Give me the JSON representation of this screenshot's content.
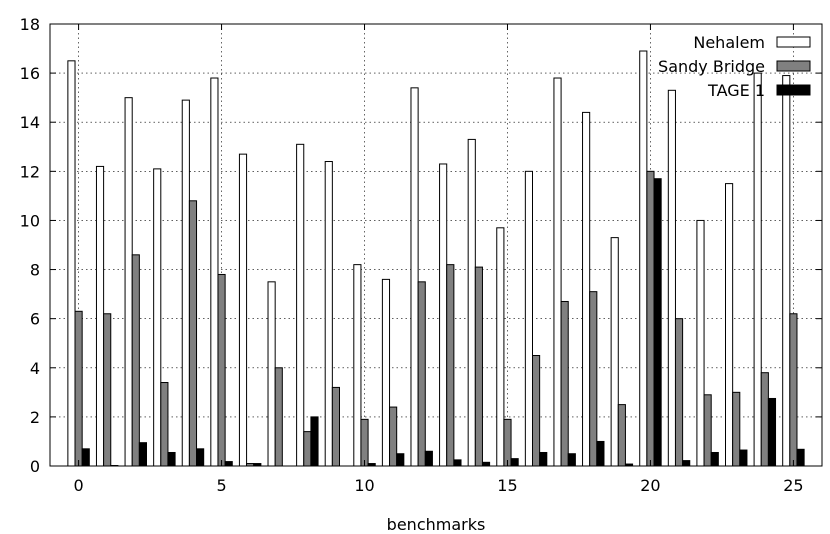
{
  "chart_data": {
    "type": "bar",
    "title": "",
    "xlabel": "benchmarks",
    "ylabel": "",
    "ylim": [
      0,
      18
    ],
    "xlim": [
      -1,
      26
    ],
    "xticks": [
      0,
      5,
      10,
      15,
      20,
      25
    ],
    "yticks": [
      0,
      2,
      4,
      6,
      8,
      10,
      12,
      14,
      16,
      18
    ],
    "grid": true,
    "legend_position": "top-right",
    "categories": [
      0,
      1,
      2,
      3,
      4,
      5,
      6,
      7,
      8,
      9,
      10,
      11,
      12,
      13,
      14,
      15,
      16,
      17,
      18,
      19,
      20,
      21,
      22,
      23,
      24,
      25
    ],
    "series": [
      {
        "name": "Nehalem",
        "fill": "#ffffff",
        "values": [
          16.5,
          12.2,
          15.0,
          12.1,
          14.9,
          15.8,
          12.7,
          7.5,
          13.1,
          12.4,
          8.2,
          7.6,
          15.4,
          12.3,
          13.3,
          9.7,
          12.0,
          15.8,
          14.4,
          9.3,
          16.9,
          15.3,
          10.0,
          11.5,
          16.0,
          15.9
        ]
      },
      {
        "name": "Sandy Bridge",
        "fill": "#808080",
        "values": [
          6.3,
          6.2,
          8.6,
          3.4,
          10.8,
          7.8,
          0.1,
          4.0,
          1.4,
          3.2,
          1.9,
          2.4,
          7.5,
          8.2,
          8.1,
          1.9,
          4.5,
          6.7,
          7.1,
          2.5,
          12.0,
          6.0,
          2.9,
          3.0,
          3.8,
          6.2
        ]
      },
      {
        "name": "TAGE 1",
        "fill": "#000000",
        "values": [
          0.7,
          0.02,
          0.95,
          0.55,
          0.7,
          0.18,
          0.1,
          0.0,
          2.0,
          0.0,
          0.1,
          0.5,
          0.6,
          0.25,
          0.15,
          0.3,
          0.55,
          0.5,
          1.0,
          0.08,
          11.7,
          0.22,
          0.55,
          0.65,
          2.75,
          0.68
        ]
      }
    ]
  }
}
